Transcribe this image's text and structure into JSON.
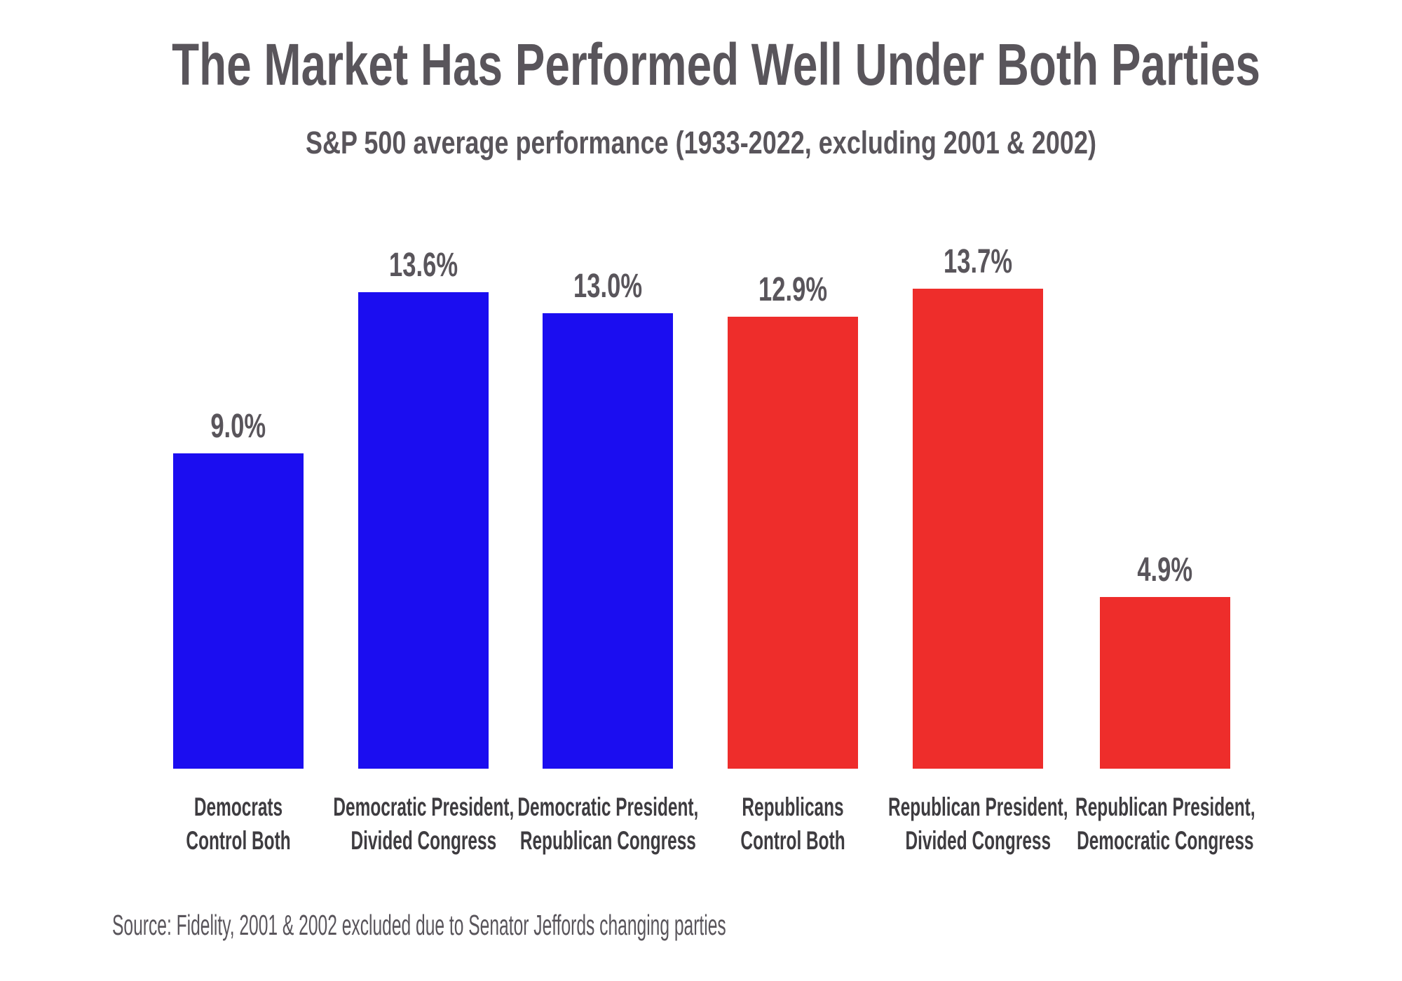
{
  "header": {
    "title": "The Market Has Performed Well Under Both Parties",
    "subtitle": "S&P 500 average performance (1933-2022, excluding 2001 & 2002)"
  },
  "footer": {
    "source": "Source: Fidelity, 2001 & 2002 excluded due to Senator Jeffords changing parties"
  },
  "colors": {
    "democrat_blue": "#1B0DF0",
    "republican_red": "#EE2D2B",
    "title_gray": "#59555B",
    "category_label_gray": "#3E3C40",
    "background": "#FFFFFF"
  },
  "chart_data": {
    "type": "bar",
    "title": "The Market Has Performed Well Under Both Parties",
    "subtitle": "S&P 500 average performance (1933-2022, excluding 2001 & 2002)",
    "xlabel": "",
    "ylabel": "",
    "ylim": [
      0,
      15
    ],
    "grid": false,
    "legend": null,
    "categories": [
      [
        "Democrats",
        "Control Both"
      ],
      [
        "Democratic President,",
        "Divided Congress"
      ],
      [
        "Democratic President,",
        "Republican Congress"
      ],
      [
        "Republicans",
        "Control Both"
      ],
      [
        "Republican President,",
        "Divided Congress"
      ],
      [
        "Republican President,",
        "Democratic Congress"
      ]
    ],
    "values": [
      9.0,
      13.6,
      13.0,
      12.9,
      13.7,
      4.9
    ],
    "value_labels": [
      "9.0%",
      "13.6%",
      "13.0%",
      "12.9%",
      "13.7%",
      "4.9%"
    ],
    "bar_colors": [
      "#1B0DF0",
      "#1B0DF0",
      "#1B0DF0",
      "#EE2D2B",
      "#EE2D2B",
      "#EE2D2B"
    ],
    "source": "Source: Fidelity, 2001 & 2002 excluded due to Senator Jeffords changing parties"
  }
}
